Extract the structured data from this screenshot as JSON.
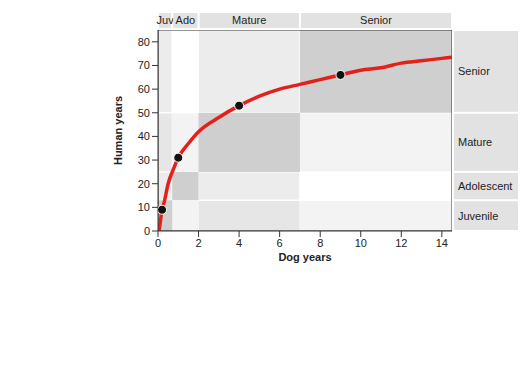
{
  "chart_data": {
    "type": "line",
    "x_label": "Dog years",
    "y_label": "Human years",
    "x": [
      0.05,
      0.1,
      0.2,
      0.3,
      0.5,
      0.75,
      1,
      1.5,
      2,
      3,
      4,
      5,
      6,
      7,
      8,
      9,
      10,
      11,
      12,
      13,
      14,
      14.5
    ],
    "values": [
      0,
      3,
      9,
      12,
      20,
      26,
      31,
      37,
      42,
      48,
      53,
      57,
      60,
      62,
      64,
      66,
      68,
      69,
      71,
      72,
      73,
      73.5
    ],
    "color": "#e3211c",
    "highlight_points": {
      "x": [
        0.2,
        1,
        4,
        9
      ],
      "values": [
        9,
        31,
        53,
        66
      ]
    },
    "stages": [
      {
        "top_label": "Juv",
        "side_label": "Juvenile",
        "dog": [
          0,
          0.7
        ],
        "human": [
          0,
          13
        ]
      },
      {
        "top_label": "Ado",
        "side_label": "Adolescent",
        "dog": [
          0.7,
          2
        ],
        "human": [
          13,
          25
        ]
      },
      {
        "top_label": "Mature",
        "side_label": "Mature",
        "dog": [
          2,
          7
        ],
        "human": [
          25,
          50
        ]
      },
      {
        "top_label": "Senior",
        "side_label": "Senior",
        "dog": [
          7,
          14.5
        ],
        "human": [
          50,
          85
        ]
      }
    ],
    "xlim": [
      0,
      14.5
    ],
    "xticks": [
      0,
      2,
      4,
      6,
      8,
      10,
      12,
      14
    ],
    "ylim": [
      0,
      85
    ],
    "yticks": [
      0,
      10,
      20,
      30,
      40,
      50,
      60,
      70,
      80
    ],
    "grid": false
  }
}
